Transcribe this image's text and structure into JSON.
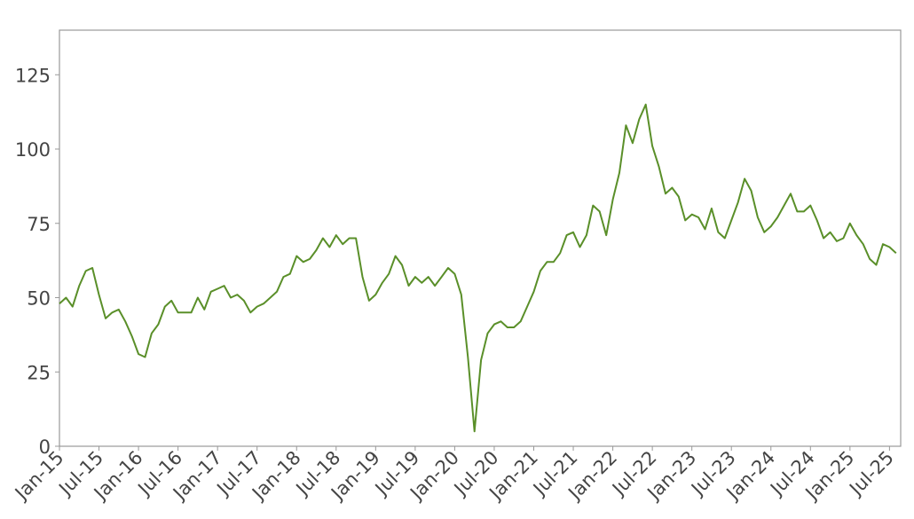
{
  "chart_data": {
    "type": "line",
    "x": [
      "2015-01",
      "2015-02",
      "2015-03",
      "2015-04",
      "2015-05",
      "2015-06",
      "2015-07",
      "2015-08",
      "2015-09",
      "2015-10",
      "2015-11",
      "2015-12",
      "2016-01",
      "2016-02",
      "2016-03",
      "2016-04",
      "2016-05",
      "2016-06",
      "2016-07",
      "2016-08",
      "2016-09",
      "2016-10",
      "2016-11",
      "2016-12",
      "2017-01",
      "2017-02",
      "2017-03",
      "2017-04",
      "2017-05",
      "2017-06",
      "2017-07",
      "2017-08",
      "2017-09",
      "2017-10",
      "2017-11",
      "2017-12",
      "2018-01",
      "2018-02",
      "2018-03",
      "2018-04",
      "2018-05",
      "2018-06",
      "2018-07",
      "2018-08",
      "2018-09",
      "2018-10",
      "2018-11",
      "2018-12",
      "2019-01",
      "2019-02",
      "2019-03",
      "2019-04",
      "2019-05",
      "2019-06",
      "2019-07",
      "2019-08",
      "2019-09",
      "2019-10",
      "2019-11",
      "2019-12",
      "2020-01",
      "2020-02",
      "2020-03",
      "2020-04",
      "2020-05",
      "2020-06",
      "2020-07",
      "2020-08",
      "2020-09",
      "2020-10",
      "2020-11",
      "2020-12",
      "2021-01",
      "2021-02",
      "2021-03",
      "2021-04",
      "2021-05",
      "2021-06",
      "2021-07",
      "2021-08",
      "2021-09",
      "2021-10",
      "2021-11",
      "2021-12",
      "2022-01",
      "2022-02",
      "2022-03",
      "2022-04",
      "2022-05",
      "2022-06",
      "2022-07",
      "2022-08",
      "2022-09",
      "2022-10",
      "2022-11",
      "2022-12",
      "2023-01",
      "2023-02",
      "2023-03",
      "2023-04",
      "2023-05",
      "2023-06",
      "2023-07",
      "2023-08",
      "2023-09",
      "2023-10",
      "2023-11",
      "2023-12",
      "2024-01",
      "2024-02",
      "2024-03",
      "2024-04",
      "2024-05",
      "2024-06",
      "2024-07",
      "2024-08",
      "2024-09",
      "2024-10",
      "2024-11",
      "2024-12",
      "2025-01",
      "2025-02",
      "2025-03",
      "2025-04",
      "2025-05",
      "2025-06",
      "2025-07",
      "2025-08"
    ],
    "values": [
      48,
      50,
      47,
      54,
      59,
      60,
      51,
      43,
      45,
      46,
      42,
      37,
      31,
      30,
      38,
      41,
      47,
      49,
      45,
      45,
      45,
      50,
      46,
      52,
      53,
      54,
      50,
      51,
      49,
      45,
      47,
      48,
      50,
      52,
      57,
      58,
      64,
      62,
      63,
      66,
      70,
      67,
      71,
      68,
      70,
      70,
      57,
      49,
      51,
      55,
      58,
      64,
      61,
      54,
      57,
      55,
      57,
      54,
      57,
      60,
      58,
      51,
      30,
      5,
      29,
      38,
      41,
      42,
      40,
      40,
      42,
      47,
      52,
      59,
      62,
      62,
      65,
      71,
      72,
      67,
      71,
      81,
      79,
      71,
      83,
      92,
      108,
      102,
      110,
      115,
      101,
      94,
      85,
      87,
      84,
      76,
      78,
      77,
      73,
      80,
      72,
      70,
      76,
      82,
      90,
      86,
      77,
      72,
      74,
      77,
      81,
      85,
      79,
      79,
      81,
      76,
      70,
      72,
      69,
      70,
      75,
      71,
      68,
      63,
      61,
      68,
      67,
      65
    ],
    "color": "#5a8f29",
    "xlim": [
      "2015-01",
      "2025-08"
    ],
    "xticks": [
      {
        "value": "2015-01",
        "label": "Jan-15"
      },
      {
        "value": "2015-07",
        "label": "Jul-15"
      },
      {
        "value": "2016-01",
        "label": "Jan-16"
      },
      {
        "value": "2016-07",
        "label": "Jul-16"
      },
      {
        "value": "2017-01",
        "label": "Jan-17"
      },
      {
        "value": "2017-07",
        "label": "Jul-17"
      },
      {
        "value": "2018-01",
        "label": "Jan-18"
      },
      {
        "value": "2018-07",
        "label": "Jul-18"
      },
      {
        "value": "2019-01",
        "label": "Jan-19"
      },
      {
        "value": "2019-07",
        "label": "Jul-19"
      },
      {
        "value": "2020-01",
        "label": "Jan-20"
      },
      {
        "value": "2020-07",
        "label": "Jul-20"
      },
      {
        "value": "2021-01",
        "label": "Jan-21"
      },
      {
        "value": "2021-07",
        "label": "Jul-21"
      },
      {
        "value": "2022-01",
        "label": "Jan-22"
      },
      {
        "value": "2022-07",
        "label": "Jul-22"
      },
      {
        "value": "2023-01",
        "label": "Jan-23"
      },
      {
        "value": "2023-07",
        "label": "Jul-23"
      },
      {
        "value": "2024-01",
        "label": "Jan-24"
      },
      {
        "value": "2024-07",
        "label": "Jul-24"
      },
      {
        "value": "2025-01",
        "label": "Jan-25"
      },
      {
        "value": "2025-07",
        "label": "Jul-25"
      }
    ],
    "ylim": [
      0,
      140
    ],
    "yticks": [
      0,
      25,
      50,
      75,
      100,
      125
    ],
    "grid": false
  }
}
